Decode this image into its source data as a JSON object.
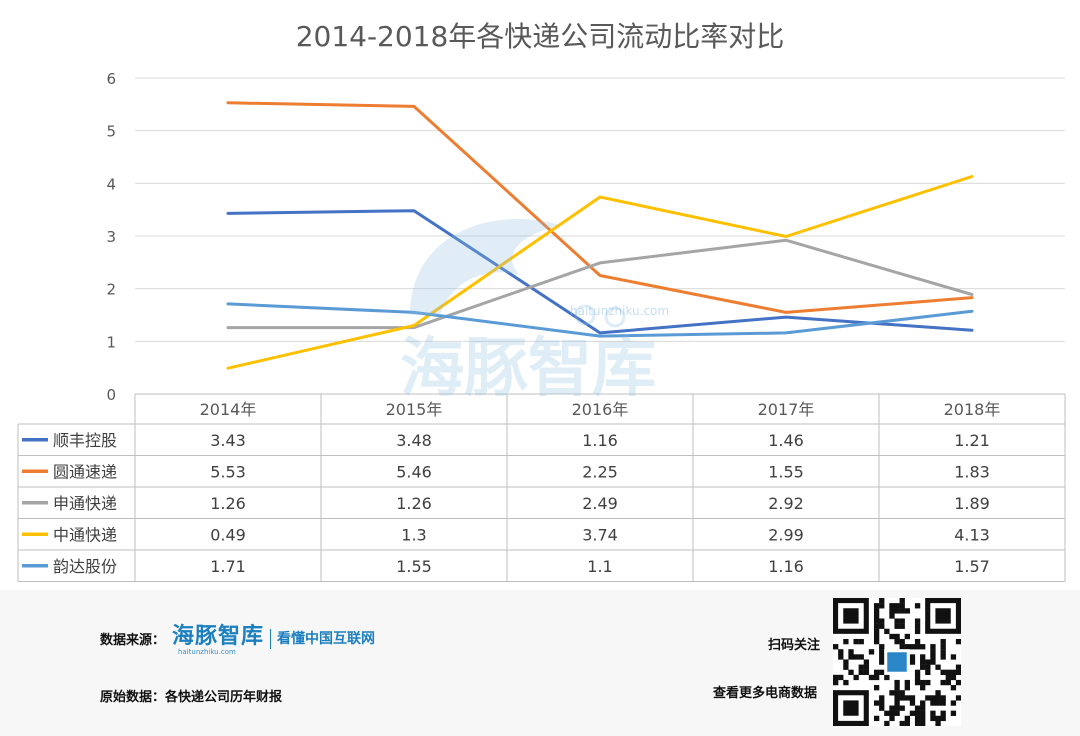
{
  "chart_data": {
    "type": "line",
    "title": "2014-2018年各快递公司流动比率对比",
    "categories": [
      "2014年",
      "2015年",
      "2016年",
      "2017年",
      "2018年"
    ],
    "ylim": [
      0,
      6
    ],
    "yticks": [
      "0",
      "1",
      "2",
      "3",
      "4",
      "5",
      "6"
    ],
    "grid": true,
    "legend": "data-table-left",
    "series": [
      {
        "name": "顺丰控股",
        "color": "#4472c4",
        "values": [
          3.43,
          3.48,
          1.16,
          1.46,
          1.21
        ],
        "labels": [
          "3.43",
          "3.48",
          "1.16",
          "1.46",
          "1.21"
        ]
      },
      {
        "name": "圆通速递",
        "color": "#ed7d31",
        "values": [
          5.53,
          5.46,
          2.25,
          1.55,
          1.83
        ],
        "labels": [
          "5.53",
          "5.46",
          "2.25",
          "1.55",
          "1.83"
        ]
      },
      {
        "name": "申通快递",
        "color": "#a5a5a5",
        "values": [
          1.26,
          1.26,
          2.49,
          2.92,
          1.89
        ],
        "labels": [
          "1.26",
          "1.26",
          "2.49",
          "2.92",
          "1.89"
        ]
      },
      {
        "name": "中通快递",
        "color": "#ffc000",
        "values": [
          0.49,
          1.3,
          3.74,
          2.99,
          4.13
        ],
        "labels": [
          "0.49",
          "1.3",
          "3.74",
          "2.99",
          "4.13"
        ]
      },
      {
        "name": "韵达股份",
        "color": "#5b9bd5",
        "values": [
          1.71,
          1.55,
          1.1,
          1.16,
          1.57
        ],
        "labels": [
          "1.71",
          "1.55",
          "1.1",
          "1.16",
          "1.57"
        ]
      }
    ]
  },
  "footer": {
    "source_label": "数据来源：",
    "brand_name": "海豚智库",
    "brand_slogan": "看懂中国互联网",
    "brand_url": "haitunzhiku.com",
    "raw_label": "原始数据：各快递公司历年财报",
    "scan_label": "扫码关注",
    "more_label": "查看更多电商数据"
  },
  "watermark": {
    "text": "海豚智库",
    "url": "haitunzhiku.com"
  }
}
